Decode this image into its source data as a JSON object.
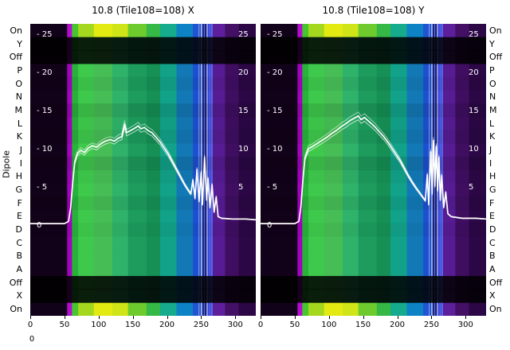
{
  "chart_data": {
    "type": "heatmap",
    "ylabel_left": "Dipole",
    "x_max": 330,
    "x_ticks": [
      0,
      50,
      100,
      150,
      200,
      250,
      300
    ],
    "axis_extra_tick": "0",
    "row_labels": [
      "On",
      "Y",
      "Off",
      "P",
      "O",
      "N",
      "M",
      "L",
      "K",
      "J",
      "I",
      "H",
      "G",
      "F",
      "E",
      "D",
      "C",
      "B",
      "A",
      "Off",
      "X",
      "On"
    ],
    "row_states": [
      "bright",
      "off",
      "off",
      "norm",
      "norm",
      "norm",
      "norm",
      "norm",
      "norm",
      "norm",
      "norm",
      "norm",
      "norm",
      "norm",
      "norm",
      "norm",
      "norm",
      "norm",
      "norm",
      "off",
      "off",
      "bright"
    ],
    "row_gain": [
      1,
      0.12,
      0.12,
      1,
      0.95,
      1,
      0.9,
      0.97,
      0.93,
      1,
      0.9,
      0.96,
      1,
      0.94,
      1,
      0.96,
      1,
      1,
      1,
      0.12,
      0.12,
      1
    ],
    "inner_ticks_left": [
      "- 25",
      "- 20",
      "- 15",
      "- 10",
      "- 5",
      "0"
    ],
    "inner_ticks_right": [
      "25",
      "20",
      "15",
      "10",
      "5"
    ],
    "inner_tick_values": [
      25,
      20,
      15,
      10,
      5,
      0
    ],
    "bands": [
      {
        "x0": 0,
        "x1": 54,
        "c": "#120219",
        "b": "#120219"
      },
      {
        "x0": 54,
        "x1": 61,
        "c": "#a303bf",
        "b": "#b60cd2"
      },
      {
        "x0": 61,
        "x1": 70,
        "c": "#27b23a",
        "b": "#45c62e"
      },
      {
        "x0": 70,
        "x1": 93,
        "c": "#3fc94c",
        "b": "#a4d81e"
      },
      {
        "x0": 93,
        "x1": 120,
        "c": "#46bd55",
        "b": "#e3ea12"
      },
      {
        "x0": 120,
        "x1": 143,
        "c": "#2fb26a",
        "b": "#d0e517"
      },
      {
        "x0": 143,
        "x1": 170,
        "c": "#1d9c5d",
        "b": "#6ecb2e"
      },
      {
        "x0": 170,
        "x1": 190,
        "c": "#169055",
        "b": "#35b845"
      },
      {
        "x0": 190,
        "x1": 214,
        "c": "#12a289",
        "b": "#16ab8d"
      },
      {
        "x0": 214,
        "x1": 238,
        "c": "#1379b6",
        "b": "#0d82c4"
      },
      {
        "x0": 238,
        "x1": 251,
        "c": "#1d50cf",
        "b": "#2153d2"
      },
      {
        "x0": 251,
        "x1": 259,
        "c": "#111b80",
        "b": "#111b80"
      },
      {
        "x0": 259,
        "x1": 267,
        "c": "#3843da",
        "b": "#3843da"
      },
      {
        "x0": 267,
        "x1": 285,
        "c": "#571c93",
        "b": "#5e1f9c"
      },
      {
        "x0": 285,
        "x1": 305,
        "c": "#3f0e61",
        "b": "#431065"
      },
      {
        "x0": 305,
        "x1": 330,
        "c": "#2b0845",
        "b": "#2b0845"
      }
    ],
    "vlines": [
      {
        "x": 246,
        "c": "#ccd8ff",
        "o": 0.5
      },
      {
        "x": 250,
        "c": "#ffffff",
        "o": 0.85
      },
      {
        "x": 254,
        "c": "#8fa8ff",
        "o": 0.6
      },
      {
        "x": 258,
        "c": "#eaf0ff",
        "o": 0.8
      },
      {
        "x": 262,
        "c": "#7d8cf2",
        "o": 0.5
      },
      {
        "x": 265,
        "c": "#c4ceff",
        "o": 0.4
      }
    ],
    "panels": [
      {
        "title": "10.8 (Tile108=108) X",
        "line": [
          [
            0,
            0.2
          ],
          [
            50,
            0.2
          ],
          [
            56,
            0.5
          ],
          [
            59,
            2.2
          ],
          [
            62,
            5.5
          ],
          [
            65,
            8.2
          ],
          [
            69,
            9.4
          ],
          [
            74,
            9.8
          ],
          [
            79,
            9.5
          ],
          [
            85,
            10.1
          ],
          [
            91,
            10.4
          ],
          [
            97,
            10.2
          ],
          [
            104,
            10.7
          ],
          [
            110,
            11.0
          ],
          [
            117,
            11.2
          ],
          [
            123,
            11.0
          ],
          [
            129,
            11.4
          ],
          [
            134,
            11.6
          ],
          [
            138,
            13.2
          ],
          [
            141,
            12.1
          ],
          [
            147,
            12.4
          ],
          [
            153,
            12.7
          ],
          [
            158,
            13.0
          ],
          [
            162,
            12.6
          ],
          [
            167,
            12.8
          ],
          [
            172,
            12.4
          ],
          [
            178,
            12.1
          ],
          [
            184,
            11.5
          ],
          [
            190,
            10.9
          ],
          [
            196,
            10.1
          ],
          [
            202,
            9.3
          ],
          [
            208,
            8.3
          ],
          [
            214,
            7.3
          ],
          [
            220,
            6.3
          ],
          [
            226,
            5.3
          ],
          [
            231,
            4.6
          ],
          [
            235,
            4.1
          ],
          [
            238,
            5.9
          ],
          [
            241,
            3.5
          ],
          [
            244,
            7.3
          ],
          [
            247,
            3.1
          ],
          [
            250,
            6.9
          ],
          [
            252,
            2.7
          ],
          [
            255,
            8.9
          ],
          [
            258,
            3.3
          ],
          [
            260,
            6.1
          ],
          [
            263,
            2.3
          ],
          [
            266,
            5.3
          ],
          [
            269,
            1.7
          ],
          [
            272,
            3.7
          ],
          [
            275,
            1.1
          ],
          [
            280,
            0.9
          ],
          [
            295,
            0.8
          ],
          [
            315,
            0.8
          ],
          [
            330,
            0.7
          ]
        ]
      },
      {
        "title": "10.8 (Tile108=108) Y",
        "line": [
          [
            0,
            0.2
          ],
          [
            50,
            0.2
          ],
          [
            56,
            0.5
          ],
          [
            59,
            2.4
          ],
          [
            62,
            6.0
          ],
          [
            65,
            8.8
          ],
          [
            70,
            10.0
          ],
          [
            76,
            10.3
          ],
          [
            83,
            10.7
          ],
          [
            90,
            11.1
          ],
          [
            97,
            11.5
          ],
          [
            104,
            12.0
          ],
          [
            111,
            12.4
          ],
          [
            118,
            12.9
          ],
          [
            125,
            13.3
          ],
          [
            131,
            13.7
          ],
          [
            137,
            14.0
          ],
          [
            143,
            14.3
          ],
          [
            147,
            13.8
          ],
          [
            152,
            14.1
          ],
          [
            157,
            13.7
          ],
          [
            162,
            13.3
          ],
          [
            168,
            12.8
          ],
          [
            174,
            12.2
          ],
          [
            180,
            11.6
          ],
          [
            186,
            10.9
          ],
          [
            192,
            10.1
          ],
          [
            198,
            9.3
          ],
          [
            204,
            8.5
          ],
          [
            210,
            7.5
          ],
          [
            216,
            6.5
          ],
          [
            222,
            5.6
          ],
          [
            228,
            4.8
          ],
          [
            233,
            4.2
          ],
          [
            237,
            3.7
          ],
          [
            241,
            3.2
          ],
          [
            244,
            6.6
          ],
          [
            246,
            2.7
          ],
          [
            249,
            9.6
          ],
          [
            251,
            4.1
          ],
          [
            253,
            11.1
          ],
          [
            255,
            5.1
          ],
          [
            257,
            10.3
          ],
          [
            259,
            4.5
          ],
          [
            261,
            8.9
          ],
          [
            263,
            3.3
          ],
          [
            265,
            6.5
          ],
          [
            268,
            2.3
          ],
          [
            271,
            4.3
          ],
          [
            274,
            1.5
          ],
          [
            279,
            1.1
          ],
          [
            295,
            0.9
          ],
          [
            315,
            0.9
          ],
          [
            330,
            0.8
          ]
        ]
      }
    ]
  }
}
